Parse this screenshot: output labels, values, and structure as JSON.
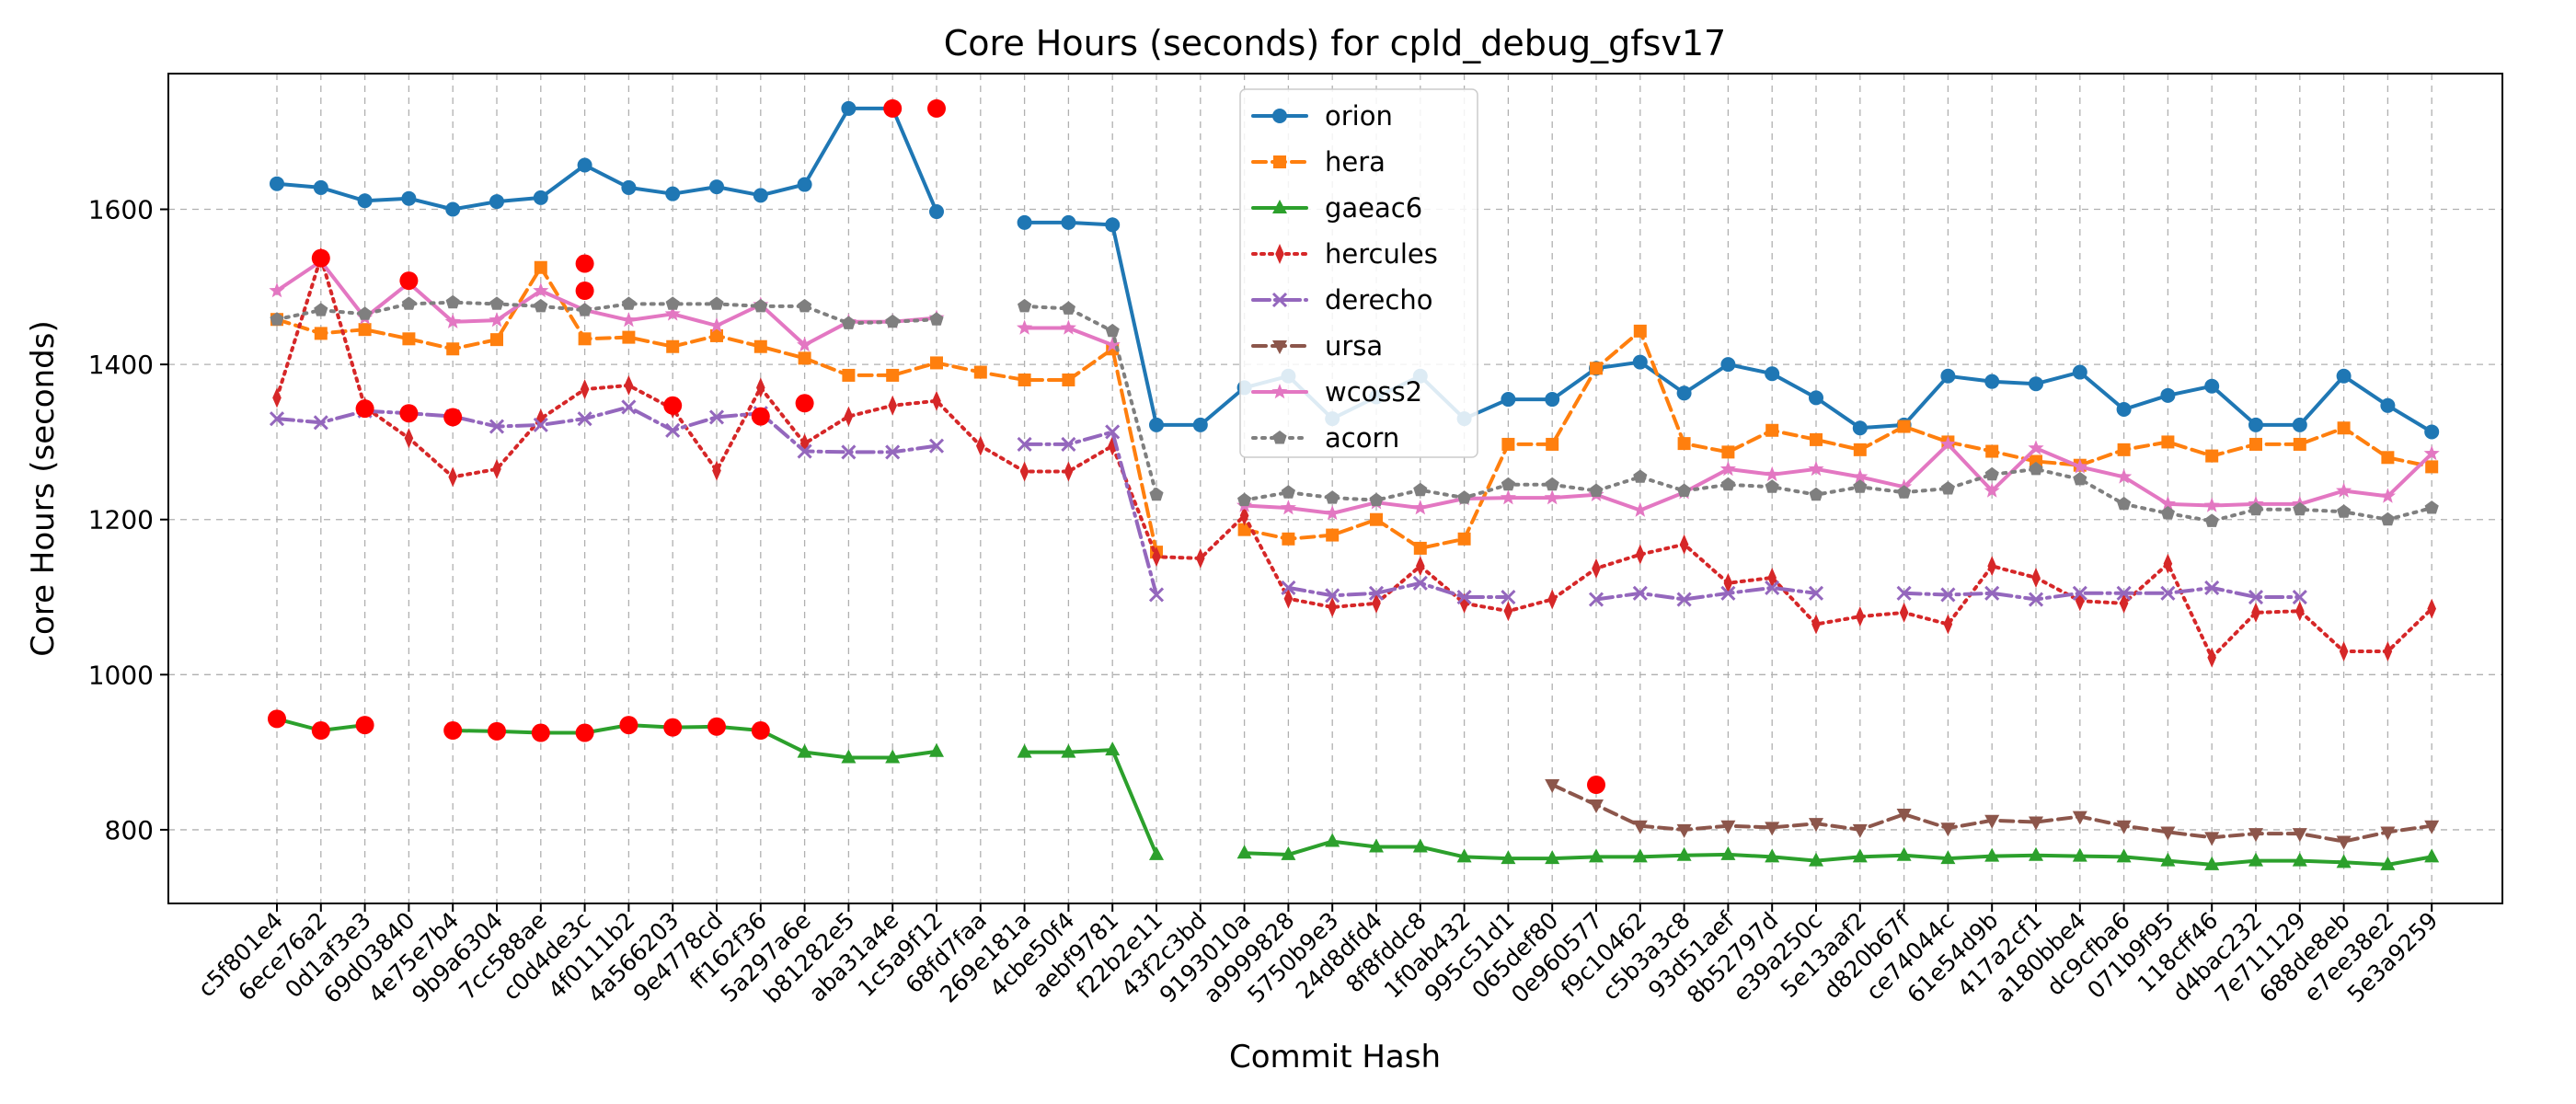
{
  "chart_data": {
    "type": "line",
    "title": "Core Hours (seconds) for cpld_debug_gfsv17",
    "xlabel": "Commit Hash",
    "ylabel": "Core Hours (seconds)",
    "ylim": [
      705,
      1775
    ],
    "yticks": [
      800,
      1000,
      1200,
      1400,
      1600
    ],
    "grid": true,
    "legend_position": "top-center",
    "categories": [
      "c5f801e4",
      "6ece76a2",
      "0d1af3e3",
      "69d03840",
      "4e75e7b4",
      "9b9a6304",
      "7cc588ae",
      "c0d4de3c",
      "4f0111b2",
      "4a566203",
      "9e4778cd",
      "ff162f36",
      "5a297a6e",
      "b81282e5",
      "aba31a4e",
      "1c5a9f12",
      "68fd7faa",
      "269e181a",
      "4cbe50f4",
      "aebf9781",
      "f22b2e11",
      "43f2c3bd",
      "9193010a",
      "a9999828",
      "5750b9e3",
      "24d8dfd4",
      "8f8fddc8",
      "1f0ab432",
      "995c51d1",
      "065def80",
      "0e960577",
      "f9c10462",
      "c5b3a3c8",
      "93d51aef",
      "8b52797d",
      "e39a250c",
      "5e13aaf2",
      "d820b67f",
      "ce74044c",
      "61e54d9b",
      "417a2cf1",
      "a180bbe4",
      "dc9cfba6",
      "071b9f95",
      "118cff46",
      "d4bac232",
      "7e711129",
      "688de8eb",
      "e7ee38e2",
      "5e3a9259"
    ],
    "series": [
      {
        "name": "orion",
        "color": "#1f77b4",
        "dash": "",
        "marker": "circle",
        "values": [
          1633,
          1628,
          1611,
          1614,
          1600,
          1610,
          1615,
          1657,
          1628,
          1620,
          1629,
          1618,
          1632,
          1730,
          1730,
          1597,
          null,
          1583,
          1583,
          1580,
          1322,
          1322,
          1370,
          1385,
          1330,
          1358,
          1385,
          1330,
          1355,
          1355,
          1395,
          1403,
          1363,
          1400,
          1388,
          1357,
          1318,
          1322,
          1385,
          1378,
          1375,
          1390,
          1342,
          1360,
          1372,
          1322,
          1322,
          1385,
          1347,
          1313
        ]
      },
      {
        "name": "hera",
        "color": "#ff7f0e",
        "dash": "14 7",
        "marker": "square",
        "values": [
          1458,
          1440,
          1445,
          1433,
          1420,
          1432,
          1525,
          1433,
          1435,
          1423,
          1437,
          1423,
          1408,
          1386,
          1386,
          1402,
          1390,
          1380,
          1380,
          1420,
          1158,
          null,
          1187,
          1175,
          1180,
          1200,
          1163,
          1175,
          1297,
          1297,
          1395,
          1443,
          1298,
          1287,
          1315,
          1303,
          1290,
          1320,
          1300,
          1288,
          1275,
          1270,
          1290,
          1300,
          1282,
          1297,
          1297,
          1318,
          1280,
          1268
        ]
      },
      {
        "name": "gaeac6",
        "color": "#2ca02c",
        "dash": "",
        "marker": "triangle",
        "values": [
          943,
          928,
          935,
          null,
          928,
          927,
          925,
          925,
          935,
          932,
          933,
          928,
          900,
          893,
          893,
          901,
          null,
          900,
          900,
          903,
          768,
          null,
          770,
          768,
          785,
          778,
          778,
          765,
          763,
          763,
          765,
          765,
          767,
          768,
          765,
          760,
          765,
          767,
          763,
          766,
          767,
          766,
          765,
          760,
          755,
          760,
          760,
          758,
          755,
          765
        ]
      },
      {
        "name": "hercules",
        "color": "#d62728",
        "dash": "3 6",
        "marker": "thin_diamond",
        "values": [
          1357,
          1538,
          1345,
          1305,
          1255,
          1265,
          1330,
          1368,
          1373,
          1343,
          1263,
          1370,
          1298,
          1333,
          1347,
          1353,
          1295,
          1262,
          1262,
          1295,
          1152,
          1150,
          1205,
          1098,
          1087,
          1092,
          1140,
          1092,
          1082,
          1097,
          1137,
          1155,
          1168,
          1118,
          1125,
          1065,
          1075,
          1080,
          1065,
          1140,
          1125,
          1095,
          1092,
          1143,
          1022,
          1080,
          1082,
          1030,
          1030,
          1085
        ]
      },
      {
        "name": "derecho",
        "color": "#9467bd",
        "dash": "18 6 3 6",
        "marker": "x",
        "values": [
          1330,
          1325,
          1340,
          1337,
          1333,
          1320,
          1322,
          1330,
          1345,
          1315,
          1332,
          1337,
          1288,
          1287,
          1287,
          1295,
          null,
          1297,
          1297,
          1313,
          1103,
          null,
          null,
          1112,
          1102,
          1105,
          1118,
          1100,
          1100,
          null,
          1097,
          1105,
          1097,
          1105,
          1112,
          1105,
          null,
          1105,
          1103,
          1105,
          1097,
          1105,
          1105,
          1105,
          1112,
          1100,
          1100,
          null,
          null,
          null
        ]
      },
      {
        "name": "ursa",
        "color": "#8c564b",
        "dash": "14 7",
        "marker": "triangle_down",
        "values": [
          null,
          null,
          null,
          null,
          null,
          null,
          null,
          null,
          null,
          null,
          null,
          null,
          null,
          null,
          null,
          null,
          null,
          null,
          null,
          null,
          null,
          null,
          null,
          null,
          null,
          null,
          null,
          null,
          null,
          858,
          832,
          805,
          800,
          805,
          803,
          808,
          800,
          820,
          802,
          812,
          810,
          817,
          805,
          797,
          790,
          795,
          795,
          785,
          797,
          805
        ]
      },
      {
        "name": "wcoss2",
        "color": "#e377c2",
        "dash": "",
        "marker": "star",
        "values": [
          1495,
          1533,
          1460,
          1505,
          1455,
          1457,
          1495,
          1470,
          1457,
          1465,
          1450,
          1477,
          1425,
          1455,
          1455,
          1460,
          null,
          1447,
          1447,
          1425,
          null,
          null,
          1218,
          1215,
          1208,
          1222,
          1215,
          1227,
          1228,
          1228,
          1232,
          1212,
          1235,
          1265,
          1258,
          1265,
          1255,
          1242,
          1297,
          1237,
          1292,
          1268,
          1255,
          1220,
          1218,
          1220,
          1220,
          1237,
          1230,
          1285
        ]
      },
      {
        "name": "acorn",
        "color": "#7f7f7f",
        "dash": "3 7",
        "marker": "pentagon",
        "values": [
          1458,
          1470,
          1465,
          1478,
          1480,
          1478,
          1475,
          1470,
          1478,
          1478,
          1478,
          1475,
          1475,
          1453,
          1455,
          1458,
          null,
          1475,
          1472,
          1443,
          1232,
          null,
          1225,
          1235,
          1228,
          1225,
          1238,
          1228,
          1245,
          1245,
          1237,
          1255,
          1237,
          1245,
          1242,
          1232,
          1242,
          1235,
          1240,
          1258,
          1265,
          1252,
          1220,
          1208,
          1198,
          1213,
          1213,
          1210,
          1200,
          1215
        ]
      }
    ],
    "highlights": [
      {
        "x": "c5f801e4",
        "y": 943
      },
      {
        "x": "6ece76a2",
        "y": 928
      },
      {
        "x": "0d1af3e3",
        "y": 935
      },
      {
        "x": "4e75e7b4",
        "y": 928
      },
      {
        "x": "9b9a6304",
        "y": 927
      },
      {
        "x": "7cc588ae",
        "y": 925
      },
      {
        "x": "c0d4de3c",
        "y": 925
      },
      {
        "x": "4f0111b2",
        "y": 935
      },
      {
        "x": "4a566203",
        "y": 932
      },
      {
        "x": "9e4778cd",
        "y": 933
      },
      {
        "x": "ff162f36",
        "y": 928
      },
      {
        "x": "6ece76a2",
        "y": 1537
      },
      {
        "x": "0d1af3e3",
        "y": 1343
      },
      {
        "x": "69d03840",
        "y": 1508
      },
      {
        "x": "69d03840",
        "y": 1337
      },
      {
        "x": "4e75e7b4",
        "y": 1332
      },
      {
        "x": "c0d4de3c",
        "y": 1530
      },
      {
        "x": "c0d4de3c",
        "y": 1495
      },
      {
        "x": "4a566203",
        "y": 1347
      },
      {
        "x": "ff162f36",
        "y": 1333
      },
      {
        "x": "5a297a6e",
        "y": 1350
      },
      {
        "x": "aba31a4e",
        "y": 1730
      },
      {
        "x": "1c5a9f12",
        "y": 1730
      },
      {
        "x": "0e960577",
        "y": 858
      }
    ],
    "highlight_color": "#ff0000"
  }
}
